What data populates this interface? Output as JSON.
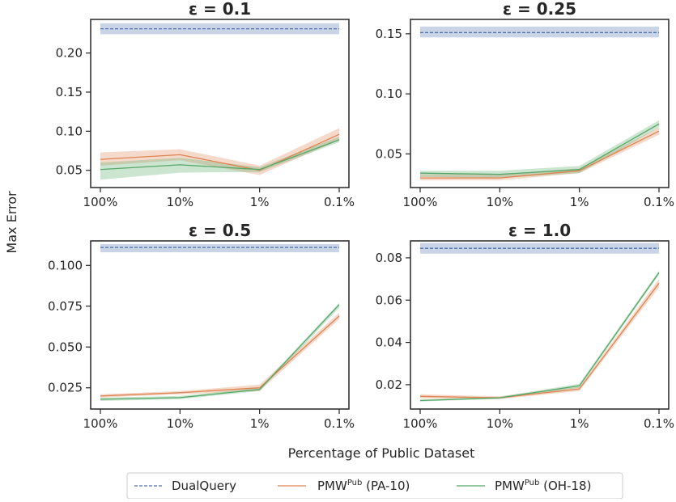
{
  "figure": {
    "xlabel": "Percentage of Public Dataset",
    "ylabel": "Max Error"
  },
  "legend": {
    "items": [
      {
        "label": "DualQuery",
        "sup": "",
        "suffix": "",
        "color": "#4c72b0",
        "dash": true
      },
      {
        "label": "PMW",
        "sup": "Pub",
        "suffix": " (PA-10)",
        "color": "#dd8452",
        "dash": false
      },
      {
        "label": "PMW",
        "sup": "Pub",
        "suffix": " (OH-18)",
        "color": "#55a868",
        "dash": false
      }
    ]
  },
  "colors": {
    "dualquery": "#4c72b0",
    "pa10": "#dd8452",
    "oh18": "#55a868"
  },
  "chart_data": [
    {
      "type": "line",
      "title": "ε = 0.1",
      "categories": [
        "100%",
        "10%",
        "1%",
        "0.1%"
      ],
      "ylim": [
        0.028,
        0.243
      ],
      "yticks": [
        0.05,
        0.1,
        0.15,
        0.2
      ],
      "yticklabels": [
        "0.05",
        "0.10",
        "0.15",
        "0.20"
      ],
      "series": [
        {
          "name": "DualQuery",
          "values": [
            0.231,
            0.231,
            0.231,
            0.231
          ],
          "lower": [
            0.224,
            0.224,
            0.224,
            0.224
          ],
          "upper": [
            0.238,
            0.238,
            0.238,
            0.238
          ]
        },
        {
          "name": "PMWPub (PA-10)",
          "values": [
            0.064,
            0.07,
            0.05,
            0.096
          ],
          "lower": [
            0.056,
            0.063,
            0.044,
            0.089
          ],
          "upper": [
            0.073,
            0.077,
            0.056,
            0.104
          ]
        },
        {
          "name": "PMWPub (OH-18)",
          "values": [
            0.051,
            0.057,
            0.051,
            0.089
          ],
          "lower": [
            0.038,
            0.047,
            0.048,
            0.086
          ],
          "upper": [
            0.06,
            0.066,
            0.054,
            0.093
          ]
        }
      ]
    },
    {
      "type": "line",
      "title": "ε = 0.25",
      "categories": [
        "100%",
        "10%",
        "1%",
        "0.1%"
      ],
      "ylim": [
        0.022,
        0.162
      ],
      "yticks": [
        0.05,
        0.1,
        0.15
      ],
      "yticklabels": [
        "0.05",
        "0.10",
        "0.15"
      ],
      "series": [
        {
          "name": "DualQuery",
          "values": [
            0.151,
            0.151,
            0.151,
            0.151
          ],
          "lower": [
            0.147,
            0.147,
            0.147,
            0.147
          ],
          "upper": [
            0.156,
            0.156,
            0.156,
            0.156
          ]
        },
        {
          "name": "PMWPub (PA-10)",
          "values": [
            0.03,
            0.03,
            0.036,
            0.069
          ],
          "lower": [
            0.028,
            0.028,
            0.034,
            0.066
          ],
          "upper": [
            0.033,
            0.033,
            0.038,
            0.072
          ]
        },
        {
          "name": "PMWPub (OH-18)",
          "values": [
            0.034,
            0.033,
            0.037,
            0.075
          ],
          "lower": [
            0.031,
            0.03,
            0.034,
            0.072
          ],
          "upper": [
            0.036,
            0.036,
            0.04,
            0.078
          ]
        }
      ]
    },
    {
      "type": "line",
      "title": "ε = 0.5",
      "categories": [
        "100%",
        "10%",
        "1%",
        "0.1%"
      ],
      "ylim": [
        0.012,
        0.115
      ],
      "yticks": [
        0.025,
        0.05,
        0.075,
        0.1
      ],
      "yticklabels": [
        "0.025",
        "0.050",
        "0.075",
        "0.100"
      ],
      "series": [
        {
          "name": "DualQuery",
          "values": [
            0.111,
            0.111,
            0.111,
            0.111
          ],
          "lower": [
            0.108,
            0.108,
            0.108,
            0.108
          ],
          "upper": [
            0.113,
            0.113,
            0.113,
            0.113
          ]
        },
        {
          "name": "PMWPub (PA-10)",
          "values": [
            0.02,
            0.022,
            0.025,
            0.069
          ],
          "lower": [
            0.019,
            0.021,
            0.023,
            0.067
          ],
          "upper": [
            0.021,
            0.023,
            0.027,
            0.071
          ]
        },
        {
          "name": "PMWPub (OH-18)",
          "values": [
            0.018,
            0.019,
            0.024,
            0.076
          ],
          "lower": [
            0.017,
            0.018,
            0.023,
            0.074
          ],
          "upper": [
            0.019,
            0.02,
            0.025,
            0.077
          ]
        }
      ]
    },
    {
      "type": "line",
      "title": "ε = 1.0",
      "categories": [
        "100%",
        "10%",
        "1%",
        "0.1%"
      ],
      "ylim": [
        0.0085,
        0.088
      ],
      "yticks": [
        0.02,
        0.04,
        0.06,
        0.08
      ],
      "yticklabels": [
        "0.02",
        "0.04",
        "0.06",
        "0.08"
      ],
      "series": [
        {
          "name": "DualQuery",
          "values": [
            0.0845,
            0.0845,
            0.0845,
            0.0845
          ],
          "lower": [
            0.082,
            0.082,
            0.082,
            0.082
          ],
          "upper": [
            0.087,
            0.087,
            0.087,
            0.087
          ]
        },
        {
          "name": "PMWPub (PA-10)",
          "values": [
            0.0145,
            0.0138,
            0.018,
            0.068
          ],
          "lower": [
            0.0135,
            0.0132,
            0.017,
            0.066
          ],
          "upper": [
            0.0155,
            0.0145,
            0.019,
            0.07
          ]
        },
        {
          "name": "PMWPub (OH-18)",
          "values": [
            0.0125,
            0.0138,
            0.0195,
            0.073
          ],
          "lower": [
            0.012,
            0.0133,
            0.0185,
            0.072
          ],
          "upper": [
            0.013,
            0.0143,
            0.0205,
            0.074
          ]
        }
      ]
    }
  ]
}
